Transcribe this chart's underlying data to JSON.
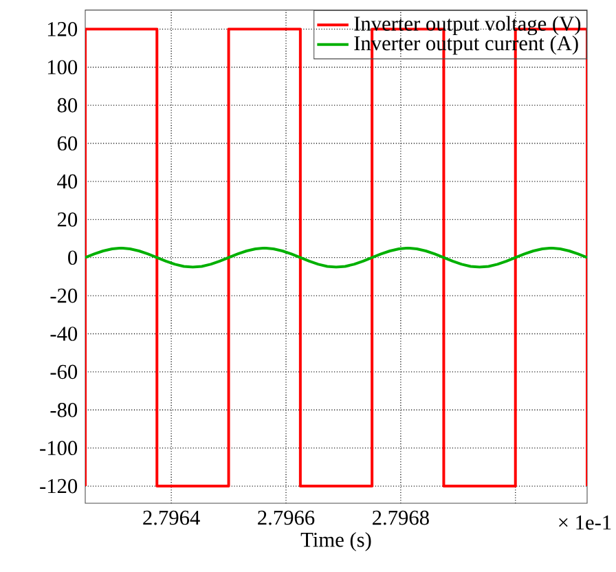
{
  "chart_data": {
    "type": "line",
    "xlabel": "Time (s)",
    "xlim": [
      2.79625,
      2.797125
    ],
    "ylim": [
      -129,
      130
    ],
    "xticks": [
      2.7964,
      2.7966,
      2.7968,
      {
        "value": 2.797,
        "label": null
      }
    ],
    "yticks": [
      -120,
      -100,
      -80,
      -60,
      -40,
      -20,
      0,
      20,
      40,
      60,
      80,
      100,
      120
    ],
    "grid": true,
    "legend": "top right",
    "line_style": "solid",
    "marker": "none",
    "annotations": [
      "× 1e-1"
    ],
    "series": [
      {
        "name": "Inverter output voltage (V)",
        "type": "step",
        "color": "#ff0000",
        "x": [
          2.79625,
          2.79625,
          2.796375,
          2.7965,
          2.796625,
          2.79675,
          2.796875,
          2.797,
          2.797125
        ],
        "values": [
          -120,
          120,
          -120,
          120,
          -120,
          120,
          -120,
          120,
          -120
        ]
      },
      {
        "name": "Inverter output current (A)",
        "color": "#00b000",
        "x": [
          2.79625,
          2.796265625,
          2.79628125,
          2.796296875,
          2.7963125,
          2.796328125,
          2.79634375,
          2.796359375,
          2.796375,
          2.796390625,
          2.79640625,
          2.796421875,
          2.7964375,
          2.796453125,
          2.79646875,
          2.796484375,
          2.7965,
          2.796515625,
          2.79653125,
          2.796546875,
          2.7965625,
          2.796578125,
          2.79659375,
          2.796609375,
          2.796625,
          2.796640625,
          2.79665625,
          2.796671875,
          2.7966875,
          2.796703125,
          2.79671875,
          2.796734375,
          2.79675,
          2.796765625,
          2.79678125,
          2.796796875,
          2.7968125,
          2.796828125,
          2.79684375,
          2.796859375,
          2.796875,
          2.796890625,
          2.79690625,
          2.796921875,
          2.7969375,
          2.796953125,
          2.79696875,
          2.796984375,
          2.797,
          2.797015625,
          2.79703125,
          2.797046875,
          2.7970625,
          2.797078125,
          2.79709375,
          2.797109375,
          2.797125
        ],
        "values": [
          0,
          1.9,
          3.5,
          4.6,
          5,
          4.6,
          3.5,
          1.9,
          0,
          -1.9,
          -3.5,
          -4.6,
          -5,
          -4.6,
          -3.5,
          -1.9,
          0,
          1.9,
          3.5,
          4.6,
          5,
          4.6,
          3.5,
          1.9,
          0,
          -1.9,
          -3.5,
          -4.6,
          -5,
          -4.6,
          -3.5,
          -1.9,
          0,
          1.9,
          3.5,
          4.6,
          5,
          4.6,
          3.5,
          1.9,
          0,
          -1.9,
          -3.5,
          -4.6,
          -5,
          -4.6,
          -3.5,
          -1.9,
          0,
          1.9,
          3.5,
          4.6,
          5,
          4.6,
          3.5,
          1.9,
          0
        ]
      }
    ]
  }
}
